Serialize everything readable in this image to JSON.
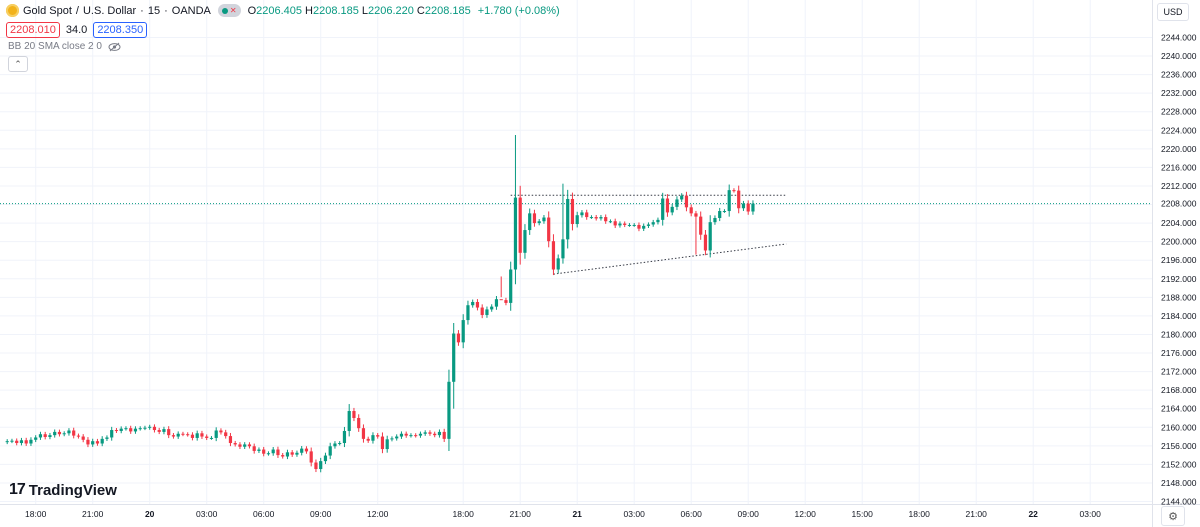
{
  "header": {
    "symbol": "Gold Spot",
    "separator": "/",
    "quote": "U.S. Dollar",
    "interval": "15",
    "broker": "OANDA",
    "ohlc": [
      {
        "k": "O",
        "v": "2206.405"
      },
      {
        "k": "H",
        "v": "2208.185"
      },
      {
        "k": "L",
        "v": "2206.220"
      },
      {
        "k": "C",
        "v": "2208.185"
      }
    ],
    "change": "+1.780 (+0.08%)"
  },
  "quote_row": {
    "bid": "2208.010",
    "spread": "34.0",
    "ask": "2208.350"
  },
  "indicator": {
    "label": "BB 20 SMA close 2 0"
  },
  "currency": "USD",
  "brand": "TradingView",
  "colors": {
    "up": "#089981",
    "down": "#f23645",
    "grid": "#f0f3fa",
    "line": "#363a45",
    "price_line": "#089981"
  },
  "chart_data": {
    "type": "candlestick",
    "ylim": [
      2142,
      2248
    ],
    "y_ticks": [
      2144,
      2148,
      2152,
      2156,
      2160,
      2164,
      2168,
      2172,
      2176,
      2180,
      2184,
      2188,
      2192,
      2196,
      2200,
      2204,
      2208,
      2212,
      2216,
      2220,
      2224,
      2228,
      2232,
      2236,
      2240,
      2244
    ],
    "y_tick_labels": [
      "2144.000",
      "2148.000",
      "2152.000",
      "2156.000",
      "2160.000",
      "2164.000",
      "2168.000",
      "2172.000",
      "2176.000",
      "2180.000",
      "2184.000",
      "2188.000",
      "2192.000",
      "2196.000",
      "2200.000",
      "2204.000",
      "2208.000",
      "2212.000",
      "2216.000",
      "2220.000",
      "2224.000",
      "2228.000",
      "2232.000",
      "2236.000",
      "2240.000",
      "2244.000"
    ],
    "x_ticks": [
      {
        "i": 6,
        "label": "18:00"
      },
      {
        "i": 18,
        "label": "21:00"
      },
      {
        "i": 30,
        "label": "20"
      },
      {
        "i": 42,
        "label": "03:00"
      },
      {
        "i": 54,
        "label": "06:00"
      },
      {
        "i": 66,
        "label": "09:00"
      },
      {
        "i": 78,
        "label": "12:00"
      },
      {
        "i": 96,
        "label": "18:00"
      },
      {
        "i": 108,
        "label": "21:00"
      },
      {
        "i": 120,
        "label": "21"
      },
      {
        "i": 132,
        "label": "03:00"
      },
      {
        "i": 144,
        "label": "06:00"
      },
      {
        "i": 156,
        "label": "09:00"
      },
      {
        "i": 168,
        "label": "12:00"
      },
      {
        "i": 180,
        "label": "15:00"
      },
      {
        "i": 192,
        "label": "18:00"
      },
      {
        "i": 204,
        "label": "21:00"
      },
      {
        "i": 216,
        "label": "22"
      },
      {
        "i": 228,
        "label": "03:00"
      }
    ],
    "closes": [
      2157.0,
      2157.1,
      2156.6,
      2157.2,
      2156.5,
      2157.3,
      2157.8,
      2158.5,
      2157.9,
      2158.3,
      2159.0,
      2158.5,
      2158.7,
      2159.3,
      2158.2,
      2158.0,
      2157.3,
      2156.3,
      2157.0,
      2156.5,
      2157.5,
      2157.8,
      2159.4,
      2159.2,
      2159.7,
      2159.8,
      2159.1,
      2159.7,
      2159.8,
      2159.9,
      2160.1,
      2159.4,
      2159.0,
      2159.6,
      2158.3,
      2158.0,
      2158.6,
      2158.5,
      2158.4,
      2157.7,
      2158.7,
      2158.0,
      2157.7,
      2157.7,
      2159.3,
      2158.9,
      2158.1,
      2156.6,
      2156.3,
      2155.8,
      2156.3,
      2155.9,
      2154.9,
      2155.2,
      2154.3,
      2154.4,
      2155.2,
      2154.0,
      2153.7,
      2154.6,
      2154.1,
      2154.5,
      2155.4,
      2154.8,
      2152.4,
      2151.0,
      2152.7,
      2153.9,
      2155.9,
      2156.5,
      2156.6,
      2159.2,
      2163.5,
      2162.0,
      2159.8,
      2157.5,
      2157.1,
      2158.3,
      2158.0,
      2155.3,
      2157.4,
      2157.6,
      2158.0,
      2158.6,
      2158.2,
      2158.3,
      2158.2,
      2158.6,
      2158.9,
      2158.6,
      2158.3,
      2159.0,
      2157.5,
      2169.8,
      2180.2,
      2178.3,
      2183.1,
      2186.3,
      2187.0,
      2185.8,
      2184.2,
      2185.4,
      2186.0,
      2187.6,
      2187.4,
      2186.8,
      2194.0,
      2209.5,
      2197.6,
      2202.5,
      2206.1,
      2204.0,
      2204.4,
      2205.2,
      2200.1,
      2194.0,
      2196.4,
      2200.5,
      2209.2,
      2203.8,
      2205.7,
      2206.3,
      2205.3,
      2205.3,
      2205.0,
      2205.3,
      2204.4,
      2204.4,
      2203.5,
      2203.9,
      2203.6,
      2203.6,
      2203.6,
      2202.8,
      2203.4,
      2203.7,
      2204.2,
      2204.7,
      2209.3,
      2206.3,
      2207.5,
      2209.1,
      2209.9,
      2207.4,
      2206.1,
      2205.4,
      2201.5,
      2198.1,
      2204.2,
      2205.1,
      2206.6,
      2206.6,
      2211.1,
      2211.0,
      2207.2,
      2208.2,
      2206.5,
      2208.2
    ],
    "open_first": 2156.8,
    "h_lines": [
      {
        "y": 2210.0,
        "i0": 106,
        "i1": 164,
        "style": "dotted"
      },
      {
        "y": 2208.185,
        "i0": 0,
        "i1": 230,
        "style": "price"
      }
    ],
    "trend_line": {
      "i0": 115,
      "y0": 2193.0,
      "i1": 164,
      "y1": 2199.5
    }
  }
}
